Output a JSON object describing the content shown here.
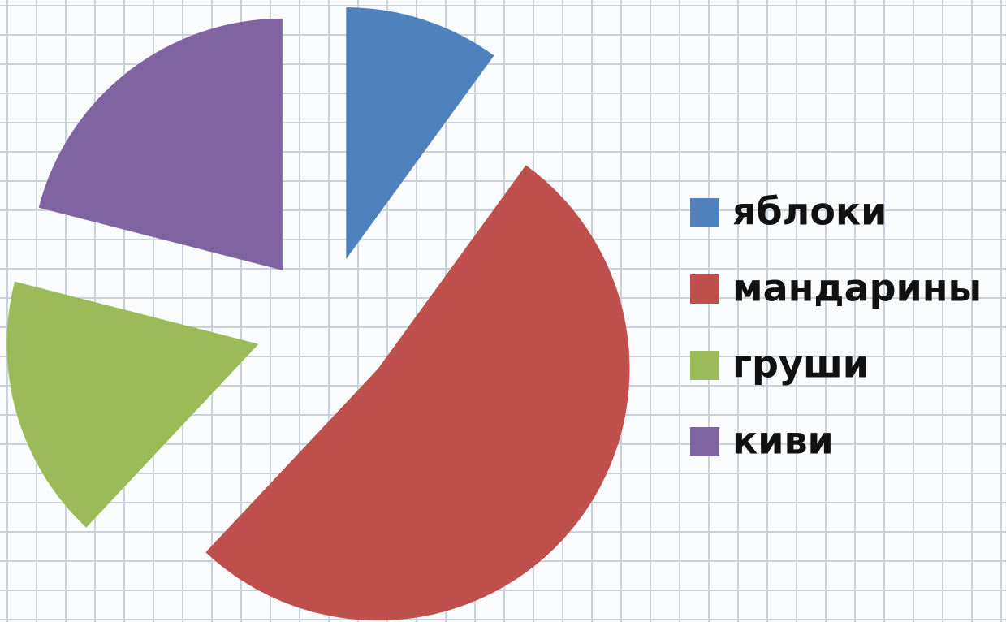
{
  "chart_data": {
    "type": "pie",
    "categories": [
      "яблоки",
      "мандарины",
      "груши",
      "киви"
    ],
    "values": [
      10,
      52,
      17,
      21
    ],
    "colors": [
      "#4f81bd",
      "#c0504d",
      "#9bbb59",
      "#8064a2"
    ],
    "exploded": true,
    "legend": "right"
  }
}
